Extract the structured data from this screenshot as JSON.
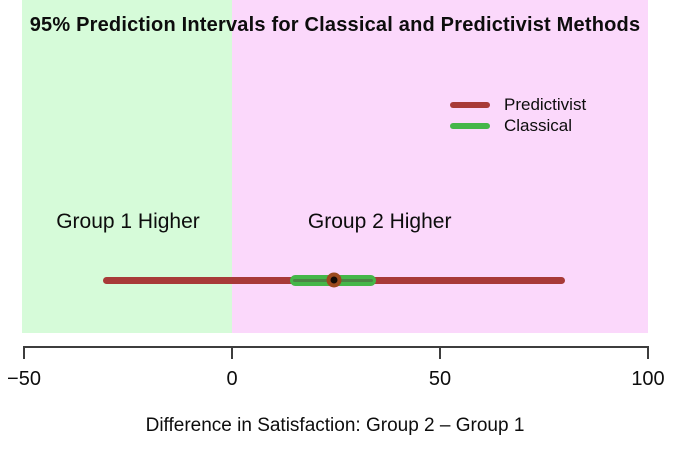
{
  "chart_data": {
    "type": "interval",
    "title": "95% Prediction Intervals for Classical and Predictivist Methods",
    "xlabel": "Difference in Satisfaction: Group 2 – Group 1",
    "xlim": [
      -50,
      100
    ],
    "x_ticks": [
      -50,
      0,
      50,
      100
    ],
    "x_tick_labels": [
      "−50",
      "0",
      "50",
      "100"
    ],
    "grid": false,
    "legend_position": "top-right",
    "regions": [
      {
        "label": "Group 1 Higher",
        "range": [
          -50,
          0
        ],
        "color": "#d6fbd9",
        "label_x": -25
      },
      {
        "label": "Group 2 Higher",
        "range": [
          0,
          100
        ],
        "color": "#fbd8fb",
        "label_x": 35.5
      }
    ],
    "series": [
      {
        "name": "Predictivist",
        "color": "#a83a38",
        "interval": [
          -31,
          80
        ],
        "thickness": 7
      },
      {
        "name": "Classical",
        "color": "#45b649",
        "interval": [
          14,
          34.5
        ],
        "thickness": 11
      }
    ],
    "point_estimate": 24.5,
    "point_color_ring": "#9c4a1e",
    "point_color_center": "#150b05",
    "classical_center_line_color": "#4b8444",
    "axis_color": "#3d3d3d"
  }
}
